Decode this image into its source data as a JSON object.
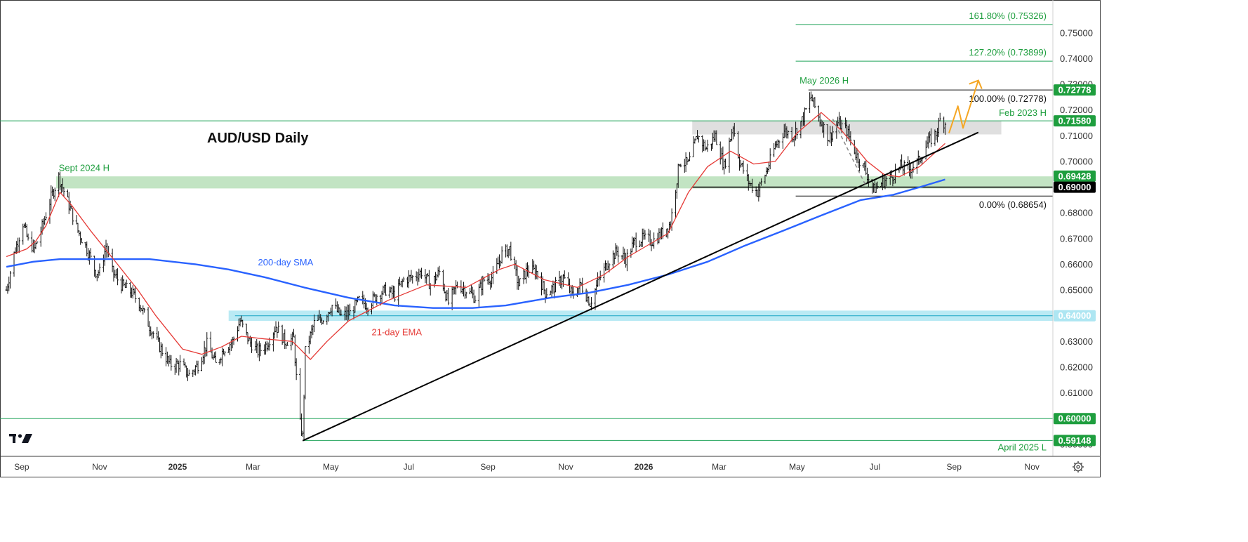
{
  "app": {
    "logo": "tv-logo-icon",
    "settings_icon": "gear-icon"
  },
  "colors": {
    "candle": "#111111",
    "ema": "#e53935",
    "sma": "#2962ff",
    "trend": "#000000",
    "fib_line": "#20a35a",
    "zone_green": "#b7dfb9",
    "zone_grey": "#d9d9d9",
    "zone_cyan": "#aee6f2",
    "badge_green": "#1e9e3e",
    "badge_black": "#000000",
    "forecast": "#f5a623",
    "annot_green": "#1e9e3e",
    "annot_black": "#111111"
  },
  "chart_data": {
    "type": "candlestick",
    "title": "AUD/USD Daily",
    "y_range": [
      0.5875,
      0.7595
    ],
    "y_ticks": [
      "0.59000",
      "0.60000",
      "0.61000",
      "0.62000",
      "0.63000",
      "0.64000",
      "0.65000",
      "0.66000",
      "0.67000",
      "0.68000",
      "0.69000",
      "0.70000",
      "0.71000",
      "0.72000",
      "0.73000",
      "0.74000",
      "0.75000"
    ],
    "x_ticks": [
      "Sep",
      "Nov",
      "2025",
      "Mar",
      "May",
      "Jul",
      "Sep",
      "Nov",
      "2026",
      "Mar",
      "May",
      "Jul",
      "Sep",
      "Nov"
    ],
    "price_path": [
      [
        "2024-08-20",
        0.65
      ],
      [
        "2024-08-26",
        0.664
      ],
      [
        "2024-09-02",
        0.676
      ],
      [
        "2024-09-06",
        0.669
      ],
      [
        "2024-09-11",
        0.666
      ],
      [
        "2024-09-18",
        0.676
      ],
      [
        "2024-09-24",
        0.686
      ],
      [
        "2024-09-30",
        0.694
      ],
      [
        "2024-10-08",
        0.683
      ],
      [
        "2024-10-15",
        0.673
      ],
      [
        "2024-10-22",
        0.666
      ],
      [
        "2024-10-29",
        0.657
      ],
      [
        "2024-11-01",
        0.657
      ],
      [
        "2024-11-06",
        0.667
      ],
      [
        "2024-11-11",
        0.657
      ],
      [
        "2024-11-18",
        0.652
      ],
      [
        "2024-11-26",
        0.649
      ],
      [
        "2024-12-02",
        0.645
      ],
      [
        "2024-12-10",
        0.636
      ],
      [
        "2024-12-18",
        0.628
      ],
      [
        "2024-12-26",
        0.621
      ],
      [
        "2025-01-03",
        0.621
      ],
      [
        "2025-01-10",
        0.617
      ],
      [
        "2025-01-17",
        0.621
      ],
      [
        "2025-01-24",
        0.629
      ],
      [
        "2025-01-31",
        0.621
      ],
      [
        "2025-02-06",
        0.627
      ],
      [
        "2025-02-13",
        0.63
      ],
      [
        "2025-02-19",
        0.638
      ],
      [
        "2025-02-26",
        0.63
      ],
      [
        "2025-03-05",
        0.626
      ],
      [
        "2025-03-12",
        0.629
      ],
      [
        "2025-03-19",
        0.636
      ],
      [
        "2025-03-26",
        0.63
      ],
      [
        "2025-04-02",
        0.631
      ],
      [
        "2025-04-04",
        0.616
      ],
      [
        "2025-04-07",
        0.598
      ],
      [
        "2025-04-09",
        0.593
      ],
      [
        "2025-04-11",
        0.626
      ],
      [
        "2025-04-18",
        0.637
      ],
      [
        "2025-04-25",
        0.639
      ],
      [
        "2025-05-02",
        0.644
      ],
      [
        "2025-05-09",
        0.64
      ],
      [
        "2025-05-16",
        0.641
      ],
      [
        "2025-05-23",
        0.646
      ],
      [
        "2025-05-30",
        0.644
      ],
      [
        "2025-06-06",
        0.648
      ],
      [
        "2025-06-13",
        0.65
      ],
      [
        "2025-06-20",
        0.648
      ],
      [
        "2025-06-27",
        0.654
      ],
      [
        "2025-07-04",
        0.655
      ],
      [
        "2025-07-11",
        0.657
      ],
      [
        "2025-07-18",
        0.652
      ],
      [
        "2025-07-25",
        0.657
      ],
      [
        "2025-08-01",
        0.645
      ],
      [
        "2025-08-08",
        0.652
      ],
      [
        "2025-08-15",
        0.65
      ],
      [
        "2025-08-22",
        0.647
      ],
      [
        "2025-08-29",
        0.654
      ],
      [
        "2025-09-05",
        0.655
      ],
      [
        "2025-09-12",
        0.664
      ],
      [
        "2025-09-18",
        0.666
      ],
      [
        "2025-09-25",
        0.652
      ],
      [
        "2025-10-02",
        0.658
      ],
      [
        "2025-10-09",
        0.657
      ],
      [
        "2025-10-16",
        0.649
      ],
      [
        "2025-10-23",
        0.651
      ],
      [
        "2025-10-30",
        0.655
      ],
      [
        "2025-11-06",
        0.648
      ],
      [
        "2025-11-13",
        0.652
      ],
      [
        "2025-11-20",
        0.645
      ],
      [
        "2025-11-27",
        0.654
      ],
      [
        "2025-12-04",
        0.661
      ],
      [
        "2025-12-11",
        0.665
      ],
      [
        "2025-12-18",
        0.662
      ],
      [
        "2025-12-25",
        0.669
      ],
      [
        "2026-01-01",
        0.67
      ],
      [
        "2026-01-08",
        0.669
      ],
      [
        "2026-01-15",
        0.672
      ],
      [
        "2026-01-22",
        0.676
      ],
      [
        "2026-01-29",
        0.7
      ],
      [
        "2026-02-05",
        0.699
      ],
      [
        "2026-02-12",
        0.71
      ],
      [
        "2026-02-19",
        0.705
      ],
      [
        "2026-02-26",
        0.71
      ],
      [
        "2026-03-05",
        0.698
      ],
      [
        "2026-03-12",
        0.714
      ],
      [
        "2026-03-17",
        0.7
      ],
      [
        "2026-03-24",
        0.692
      ],
      [
        "2026-03-31",
        0.688
      ],
      [
        "2026-04-07",
        0.696
      ],
      [
        "2026-04-14",
        0.706
      ],
      [
        "2026-04-21",
        0.712
      ],
      [
        "2026-04-28",
        0.71
      ],
      [
        "2026-05-05",
        0.716
      ],
      [
        "2026-05-12",
        0.725
      ],
      [
        "2026-05-19",
        0.716
      ],
      [
        "2026-05-26",
        0.709
      ],
      [
        "2026-06-02",
        0.715
      ],
      [
        "2026-06-09",
        0.712
      ],
      [
        "2026-06-16",
        0.703
      ],
      [
        "2026-06-23",
        0.697
      ],
      [
        "2026-06-30",
        0.689
      ],
      [
        "2026-07-07",
        0.692
      ],
      [
        "2026-07-14",
        0.694
      ],
      [
        "2026-07-21",
        0.698
      ],
      [
        "2026-07-28",
        0.697
      ],
      [
        "2026-08-04",
        0.7
      ],
      [
        "2026-08-11",
        0.707
      ],
      [
        "2026-08-18",
        0.711
      ],
      [
        "2026-08-21",
        0.716
      ],
      [
        "2026-08-25",
        0.715
      ]
    ],
    "ema21": [
      [
        "2024-08-20",
        0.663
      ],
      [
        "2024-09-05",
        0.666
      ],
      [
        "2024-09-12",
        0.669
      ],
      [
        "2024-09-20",
        0.675
      ],
      [
        "2024-10-01",
        0.688
      ],
      [
        "2024-10-10",
        0.683
      ],
      [
        "2024-10-25",
        0.673
      ],
      [
        "2024-11-15",
        0.66
      ],
      [
        "2024-12-01",
        0.65
      ],
      [
        "2024-12-15",
        0.64
      ],
      [
        "2025-01-05",
        0.627
      ],
      [
        "2025-01-20",
        0.625
      ],
      [
        "2025-02-05",
        0.628
      ],
      [
        "2025-02-20",
        0.632
      ],
      [
        "2025-03-10",
        0.631
      ],
      [
        "2025-04-01",
        0.63
      ],
      [
        "2025-04-15",
        0.623
      ],
      [
        "2025-04-28",
        0.63
      ],
      [
        "2025-05-15",
        0.638
      ],
      [
        "2025-06-15",
        0.646
      ],
      [
        "2025-07-15",
        0.652
      ],
      [
        "2025-08-15",
        0.651
      ],
      [
        "2025-09-10",
        0.658
      ],
      [
        "2025-09-22",
        0.66
      ],
      [
        "2025-10-15",
        0.654
      ],
      [
        "2025-11-10",
        0.651
      ],
      [
        "2025-12-01",
        0.656
      ],
      [
        "2025-12-20",
        0.663
      ],
      [
        "2026-01-20",
        0.672
      ],
      [
        "2026-02-05",
        0.688
      ],
      [
        "2026-02-20",
        0.698
      ],
      [
        "2026-03-10",
        0.704
      ],
      [
        "2026-03-28",
        0.699
      ],
      [
        "2026-04-14",
        0.7
      ],
      [
        "2026-05-01",
        0.711
      ],
      [
        "2026-05-20",
        0.719
      ],
      [
        "2026-06-05",
        0.712
      ],
      [
        "2026-06-25",
        0.7
      ],
      [
        "2026-07-08",
        0.695
      ],
      [
        "2026-07-20",
        0.694
      ],
      [
        "2026-08-05",
        0.698
      ],
      [
        "2026-08-25",
        0.707
      ]
    ],
    "sma200": [
      [
        "2024-08-20",
        0.659
      ],
      [
        "2024-09-10",
        0.661
      ],
      [
        "2024-10-01",
        0.662
      ],
      [
        "2024-11-10",
        0.662
      ],
      [
        "2024-12-10",
        0.662
      ],
      [
        "2025-01-15",
        0.66
      ],
      [
        "2025-02-10",
        0.658
      ],
      [
        "2025-03-10",
        0.655
      ],
      [
        "2025-04-10",
        0.651
      ],
      [
        "2025-05-15",
        0.647
      ],
      [
        "2025-06-20",
        0.644
      ],
      [
        "2025-07-20",
        0.643
      ],
      [
        "2025-08-20",
        0.643
      ],
      [
        "2025-09-15",
        0.644
      ],
      [
        "2025-10-20",
        0.647
      ],
      [
        "2025-11-20",
        0.649
      ],
      [
        "2025-12-20",
        0.652
      ],
      [
        "2026-01-20",
        0.656
      ],
      [
        "2026-02-20",
        0.661
      ],
      [
        "2026-03-20",
        0.667
      ],
      [
        "2026-04-20",
        0.673
      ],
      [
        "2026-05-20",
        0.679
      ],
      [
        "2026-06-20",
        0.685
      ],
      [
        "2026-07-15",
        0.687
      ],
      [
        "2026-08-05",
        0.69
      ],
      [
        "2026-08-25",
        0.693
      ]
    ],
    "trendline": [
      [
        "2025-04-09",
        0.5914
      ],
      [
        "2026-09-20",
        0.7113
      ]
    ],
    "forecast_arrow": [
      [
        "2026-08-28",
        0.711
      ],
      [
        "2026-09-04",
        0.7215
      ],
      [
        "2026-09-08",
        0.713
      ],
      [
        "2026-09-20",
        0.7315
      ]
    ],
    "zones": [
      {
        "name": "sept-2024-zone",
        "from": "2024-09-28",
        "to": "chart_end",
        "y": [
          0.6895,
          0.6942
        ],
        "color": "green"
      },
      {
        "name": "feb-2023-zone",
        "from": "2026-02-08",
        "to": "2026-10-08",
        "y": [
          0.7105,
          0.7158
        ],
        "color": "grey"
      },
      {
        "name": "cyan-0.64-zone",
        "from": "2025-02-10",
        "to": "chart_end",
        "y": [
          0.638,
          0.642
        ],
        "color": "cyan"
      }
    ],
    "levels": [
      {
        "name": "fib-161",
        "value": 0.75326,
        "label": "161.80% (0.75326)",
        "from": "2026-04-30",
        "color": "green"
      },
      {
        "name": "fib-127",
        "value": 0.73899,
        "label": "127.20% (0.73899)",
        "from": "2026-04-30",
        "color": "green"
      },
      {
        "name": "may-2026-high",
        "value": 0.72778,
        "label": "100.00% (0.72778)",
        "from": "2026-05-10",
        "color": "black"
      },
      {
        "name": "feb-2023-high",
        "value": 0.7158,
        "label": "Feb 2023 H",
        "from": "chart_start",
        "color": "green"
      },
      {
        "name": "0.69-level",
        "value": 0.69,
        "label": "",
        "from": "2026-02-08",
        "color": "black"
      },
      {
        "name": "fib-0",
        "value": 0.68654,
        "label": "0.00% (0.68654)",
        "from": "2026-04-30",
        "color": "black"
      },
      {
        "name": "0.64-level",
        "value": 0.64,
        "label": "",
        "from": "2025-02-15",
        "color": "cyan"
      },
      {
        "name": "0.60-level",
        "value": 0.6,
        "label": "",
        "from": "chart_start",
        "color": "green"
      },
      {
        "name": "april-2025-low",
        "value": 0.59148,
        "label": "April 2025 L",
        "from": "2025-04-09",
        "color": "green"
      }
    ],
    "annotations": [
      {
        "name": "sept-2024-high-label",
        "text": "Sept 2024 H",
        "at": [
          "2024-09-30",
          0.6963
        ],
        "color": "green"
      },
      {
        "name": "may-2026-high-label",
        "text": "May 2026 H",
        "at": [
          "2026-05-03",
          0.7303
        ],
        "color": "green"
      },
      {
        "name": "sma-label",
        "text": "200-day SMA",
        "at": [
          "2025-03-05",
          0.6596
        ],
        "color": "blue"
      },
      {
        "name": "ema-label",
        "text": "21-day EMA",
        "at": [
          "2025-06-02",
          0.6324
        ],
        "color": "red"
      }
    ],
    "price_badges": [
      {
        "label": "0.72778",
        "value": 0.72778,
        "color": "green"
      },
      {
        "label": "0.71580",
        "value": 0.7158,
        "color": "green"
      },
      {
        "label": "0.69428",
        "value": 0.69428,
        "color": "green"
      },
      {
        "label": "0.69000",
        "value": 0.69,
        "color": "black"
      },
      {
        "label": "0.64000",
        "value": 0.64,
        "color": "cyan"
      },
      {
        "label": "0.60000",
        "value": 0.6,
        "color": "green"
      },
      {
        "label": "0.59148",
        "value": 0.59148,
        "color": "green"
      }
    ]
  }
}
